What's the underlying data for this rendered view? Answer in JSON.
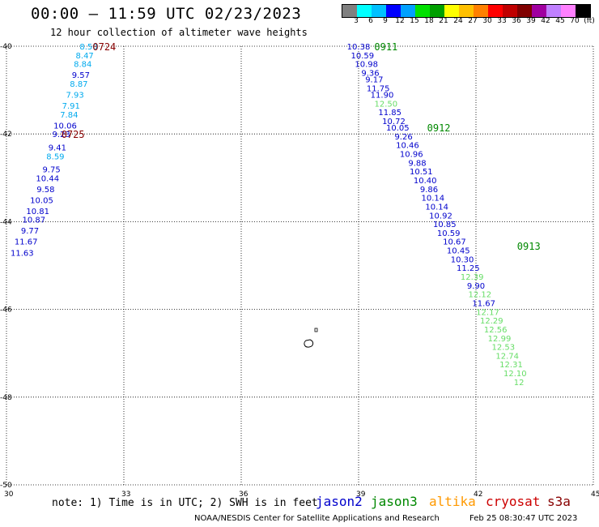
{
  "header": {
    "title": "00:00 – 11:59 UTC 02/23/2023",
    "subtitle": "12 hour collection of altimeter wave heights"
  },
  "colorbar": {
    "colors": [
      "#808080",
      "#00ffff",
      "#00c0ff",
      "#0000ff",
      "#00a0ff",
      "#00e000",
      "#00a000",
      "#ffff00",
      "#ffc000",
      "#ff8000",
      "#ff0000",
      "#c00000",
      "#800000",
      "#a000a0",
      "#c080ff",
      "#ff80ff",
      "#000000"
    ],
    "labels": [
      "3",
      "6",
      "9",
      "12",
      "15",
      "18",
      "21",
      "24",
      "27",
      "30",
      "33",
      "36",
      "39",
      "42",
      "45",
      "70",
      "(ft)"
    ]
  },
  "chart_data": {
    "type": "scatter",
    "xlim": [
      30,
      45
    ],
    "ylim": [
      -50,
      -40
    ],
    "x_ticks": [
      30,
      33,
      36,
      39,
      42,
      45
    ],
    "y_ticks": [
      -40,
      -42,
      -44,
      -46,
      -48,
      -50
    ],
    "passes": [
      {
        "satellite": "cryosat",
        "times": [
          {
            "label": "0724",
            "lon": 32.5,
            "lat": -40.0
          },
          {
            "label": "0725",
            "lon": 31.7,
            "lat": -42.0
          }
        ],
        "points": [
          {
            "lon": 32.1,
            "lat": -40.0,
            "swh": "8.50",
            "color": "#00aaee"
          },
          {
            "lon": 32.0,
            "lat": -40.2,
            "swh": "8.47",
            "color": "#00aaee"
          },
          {
            "lon": 31.95,
            "lat": -40.4,
            "swh": "8.84",
            "color": "#00aaee"
          },
          {
            "lon": 31.9,
            "lat": -40.65,
            "swh": "9.57",
            "color": "#0000cc"
          },
          {
            "lon": 31.85,
            "lat": -40.85,
            "swh": "8.87",
            "color": "#00aaee"
          },
          {
            "lon": 31.75,
            "lat": -41.1,
            "swh": "7.93",
            "color": "#00aaee"
          },
          {
            "lon": 31.65,
            "lat": -41.35,
            "swh": "7.91",
            "color": "#00aaee"
          },
          {
            "lon": 31.6,
            "lat": -41.55,
            "swh": "7.84",
            "color": "#00aaee"
          },
          {
            "lon": 31.5,
            "lat": -41.8,
            "swh": "10.06",
            "color": "#0000cc"
          },
          {
            "lon": 31.4,
            "lat": -42.0,
            "swh": "9.23",
            "color": "#0000cc"
          },
          {
            "lon": 31.3,
            "lat": -42.3,
            "swh": "9.41",
            "color": "#0000cc"
          },
          {
            "lon": 31.25,
            "lat": -42.5,
            "swh": "8.59",
            "color": "#00aaee"
          },
          {
            "lon": 31.15,
            "lat": -42.8,
            "swh": "9.75",
            "color": "#0000cc"
          },
          {
            "lon": 31.05,
            "lat": -43.0,
            "swh": "10.44",
            "color": "#0000cc"
          },
          {
            "lon": 31.0,
            "lat": -43.25,
            "swh": "9.58",
            "color": "#0000cc"
          },
          {
            "lon": 30.9,
            "lat": -43.5,
            "swh": "10.05",
            "color": "#0000cc"
          },
          {
            "lon": 30.8,
            "lat": -43.75,
            "swh": "10.81",
            "color": "#0000cc"
          },
          {
            "lon": 30.7,
            "lat": -43.95,
            "swh": "10.87",
            "color": "#0000cc"
          },
          {
            "lon": 30.6,
            "lat": -44.2,
            "swh": "9.77",
            "color": "#0000cc"
          },
          {
            "lon": 30.5,
            "lat": -44.45,
            "swh": "11.67",
            "color": "#0000cc"
          },
          {
            "lon": 30.4,
            "lat": -44.7,
            "swh": "11.63",
            "color": "#0000cc"
          }
        ]
      },
      {
        "satellite": "jason3",
        "times": [
          {
            "label": "0911",
            "lon": 39.7,
            "lat": -40.0
          },
          {
            "label": "0912",
            "lon": 41.05,
            "lat": -41.85
          },
          {
            "lon": 43.35,
            "lat": -44.55,
            "label": "0913"
          }
        ],
        "points": [
          {
            "lon": 39.0,
            "lat": -40.0,
            "swh": "10.38",
            "color": "#0000cc"
          },
          {
            "lon": 39.1,
            "lat": -40.2,
            "swh": "10.59",
            "color": "#0000cc"
          },
          {
            "lon": 39.2,
            "lat": -40.4,
            "swh": "10.98",
            "color": "#0000cc"
          },
          {
            "lon": 39.3,
            "lat": -40.6,
            "swh": "9.36",
            "color": "#0000cc"
          },
          {
            "lon": 39.4,
            "lat": -40.75,
            "swh": "9.17",
            "color": "#0000cc"
          },
          {
            "lon": 39.5,
            "lat": -40.95,
            "swh": "11.75",
            "color": "#0000cc"
          },
          {
            "lon": 39.6,
            "lat": -41.1,
            "swh": "11.90",
            "color": "#0000cc"
          },
          {
            "lon": 39.7,
            "lat": -41.3,
            "swh": "12.50",
            "color": "#66dd66"
          },
          {
            "lon": 39.8,
            "lat": -41.5,
            "swh": "11.85",
            "color": "#0000cc"
          },
          {
            "lon": 39.9,
            "lat": -41.7,
            "swh": "10.72",
            "color": "#0000cc"
          },
          {
            "lon": 40.0,
            "lat": -41.85,
            "swh": "10.05",
            "color": "#0000cc"
          },
          {
            "lon": 40.15,
            "lat": -42.05,
            "swh": "9.26",
            "color": "#0000cc"
          },
          {
            "lon": 40.25,
            "lat": -42.25,
            "swh": "10.46",
            "color": "#0000cc"
          },
          {
            "lon": 40.35,
            "lat": -42.45,
            "swh": "10.96",
            "color": "#0000cc"
          },
          {
            "lon": 40.5,
            "lat": -42.65,
            "swh": "9.88",
            "color": "#0000cc"
          },
          {
            "lon": 40.6,
            "lat": -42.85,
            "swh": "10.51",
            "color": "#0000cc"
          },
          {
            "lon": 40.7,
            "lat": -43.05,
            "swh": "10.40",
            "color": "#0000cc"
          },
          {
            "lon": 40.8,
            "lat": -43.25,
            "swh": "9.86",
            "color": "#0000cc"
          },
          {
            "lon": 40.9,
            "lat": -43.45,
            "swh": "10.14",
            "color": "#0000cc"
          },
          {
            "lon": 41.0,
            "lat": -43.65,
            "swh": "10.14",
            "color": "#0000cc"
          },
          {
            "lon": 41.1,
            "lat": -43.85,
            "swh": "10.92",
            "color": "#0000cc"
          },
          {
            "lon": 41.2,
            "lat": -44.05,
            "swh": "10.85",
            "color": "#0000cc"
          },
          {
            "lon": 41.3,
            "lat": -44.25,
            "swh": "10.59",
            "color": "#0000cc"
          },
          {
            "lon": 41.45,
            "lat": -44.45,
            "swh": "10.67",
            "color": "#0000cc"
          },
          {
            "lon": 41.55,
            "lat": -44.65,
            "swh": "10.45",
            "color": "#0000cc"
          },
          {
            "lon": 41.65,
            "lat": -44.85,
            "swh": "10.30",
            "color": "#0000cc"
          },
          {
            "lon": 41.8,
            "lat": -45.05,
            "swh": "11.25",
            "color": "#0000cc"
          },
          {
            "lon": 41.9,
            "lat": -45.25,
            "swh": "12.39",
            "color": "#66dd66"
          },
          {
            "lon": 42.0,
            "lat": -45.45,
            "swh": "9.90",
            "color": "#0000cc"
          },
          {
            "lon": 42.1,
            "lat": -45.65,
            "swh": "12.12",
            "color": "#66dd66"
          },
          {
            "lon": 42.2,
            "lat": -45.85,
            "swh": "11.67",
            "color": "#0000cc"
          },
          {
            "lon": 42.3,
            "lat": -46.05,
            "swh": "12.17",
            "color": "#66dd66"
          },
          {
            "lon": 42.4,
            "lat": -46.25,
            "swh": "12.29",
            "color": "#66dd66"
          },
          {
            "lon": 42.5,
            "lat": -46.45,
            "swh": "12.56",
            "color": "#66dd66"
          },
          {
            "lon": 42.6,
            "lat": -46.65,
            "swh": "12.99",
            "color": "#66dd66"
          },
          {
            "lon": 42.7,
            "lat": -46.85,
            "swh": "12.53",
            "color": "#66dd66"
          },
          {
            "lon": 42.8,
            "lat": -47.05,
            "swh": "12.74",
            "color": "#66dd66"
          },
          {
            "lon": 42.9,
            "lat": -47.25,
            "swh": "12.31",
            "color": "#66dd66"
          },
          {
            "lon": 43.0,
            "lat": -47.45,
            "swh": "12.10",
            "color": "#66dd66"
          },
          {
            "lon": 43.1,
            "lat": -47.65,
            "swh": "12",
            "color": "#66dd66"
          }
        ]
      }
    ]
  },
  "note": "note:  1) Time is in UTC;  2) SWH is in feet",
  "legend": [
    {
      "name": "jason2",
      "color": "#0000cc"
    },
    {
      "name": "jason3",
      "color": "#008800"
    },
    {
      "name": "altika",
      "color": "#ff9900"
    },
    {
      "name": "cryosat",
      "color": "#cc0000"
    },
    {
      "name": "s3a",
      "color": "#880000"
    }
  ],
  "footer": {
    "credit": "NOAA/NESDIS Center for Satellite Applications and Research",
    "generated": "Feb 25 08:30:47 UTC 2023"
  }
}
